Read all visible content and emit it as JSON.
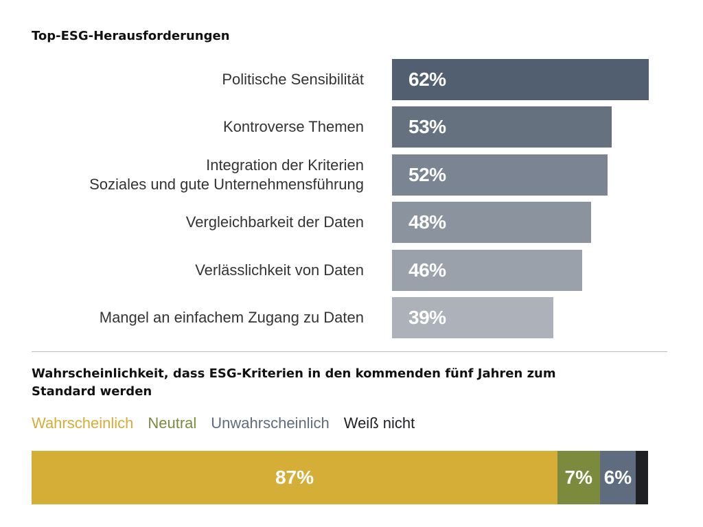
{
  "chart_data": [
    {
      "type": "bar",
      "orientation": "horizontal",
      "title": "Top-ESG-Herausforderungen",
      "categories": [
        [
          "Politische Sensibilität"
        ],
        [
          "Kontroverse Themen"
        ],
        [
          "Integration der Kriterien",
          "Soziales und gute Unternehmensführung"
        ],
        [
          "Vergleichbarkeit der Daten"
        ],
        [
          "Verlässlichkeit von Daten"
        ],
        [
          "Mangel an einfachem Zugang zu Daten"
        ]
      ],
      "values": [
        62,
        53,
        52,
        48,
        46,
        39
      ],
      "value_labels": [
        "62%",
        "53%",
        "52%",
        "48%",
        "46%",
        "39%"
      ],
      "colors": [
        "#525f71",
        "#66717f",
        "#7a8492",
        "#8b939e",
        "#9aa1ab",
        "#adb2ba"
      ],
      "xlim": [
        0,
        62
      ]
    },
    {
      "type": "bar",
      "orientation": "horizontal-stacked",
      "title": "Wahrscheinlichkeit, dass ESG-Kriterien in den kommenden fünf Jahren zum Standard werden",
      "legend_position": "top",
      "series": [
        {
          "name": "Wahrscheinlich",
          "value": 87,
          "label": "87%",
          "color": "#d5ae37"
        },
        {
          "name": "Neutral",
          "value": 7,
          "label": "7%",
          "color": "#7b8a3d"
        },
        {
          "name": "Unwahrscheinlich",
          "value": 6,
          "label": "6%",
          "color": "#5f6c80"
        },
        {
          "name": "Weiß nicht",
          "value": 2,
          "label": "",
          "color": "#1f2023"
        }
      ]
    }
  ]
}
